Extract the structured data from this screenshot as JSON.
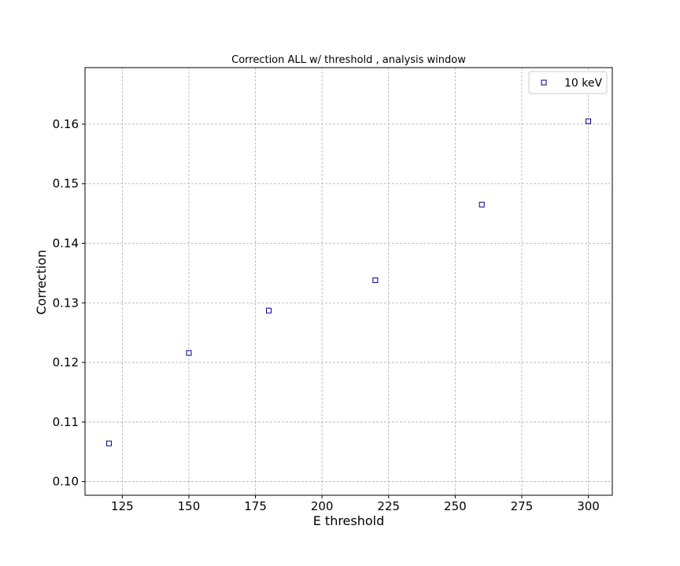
{
  "chart_data": {
    "type": "scatter",
    "title": "Correction ALL w/ threshold , analysis window",
    "xlabel": "E threshold",
    "ylabel": "Correction",
    "xlim": [
      111,
      309
    ],
    "ylim": [
      0.0977,
      0.1695
    ],
    "xticks": [
      125,
      150,
      175,
      200,
      225,
      250,
      275,
      300
    ],
    "xtick_labels": [
      "125",
      "150",
      "175",
      "200",
      "225",
      "250",
      "275",
      "300"
    ],
    "yticks": [
      0.1,
      0.11,
      0.12,
      0.13,
      0.14,
      0.15,
      0.16
    ],
    "ytick_labels": [
      "0.10",
      "0.11",
      "0.12",
      "0.13",
      "0.14",
      "0.15",
      "0.16"
    ],
    "grid": true,
    "legend_position": "top-right",
    "series": [
      {
        "name": "10 keV",
        "marker": "square-open",
        "color": "#00008b",
        "x": [
          120,
          150,
          180,
          220,
          260,
          300
        ],
        "y": [
          0.1064,
          0.1216,
          0.1287,
          0.1338,
          0.1465,
          0.1605
        ]
      }
    ]
  }
}
